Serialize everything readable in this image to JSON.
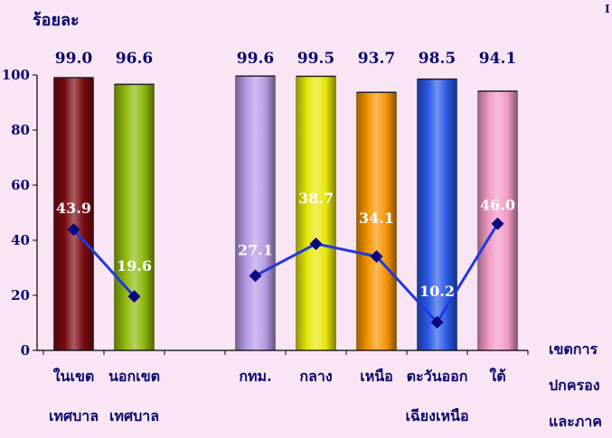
{
  "chart_data": {
    "type": "bar",
    "ylabel": "ร้อยละ",
    "xlabel_lines": [
      "เขตการ",
      "ปกครอง",
      "และภาค"
    ],
    "ylim": [
      0,
      100
    ],
    "yticks": [
      0,
      20,
      40,
      60,
      80,
      100
    ],
    "grid": false,
    "corner_mark": "I",
    "categories": [
      {
        "label_lines": [
          "ในเขต",
          "เทศบาล"
        ],
        "bar": 99.0,
        "line": 43.9,
        "color": "#7a0a12"
      },
      {
        "label_lines": [
          "นอกเขต",
          "เทศบาล"
        ],
        "bar": 96.6,
        "line": 19.6,
        "color": "#8fb80c"
      },
      {
        "label_lines": [],
        "bar": null,
        "line": null,
        "color": null
      },
      {
        "label_lines": [
          "กทม."
        ],
        "bar": 99.6,
        "line": 27.1,
        "color": "#b79ae6"
      },
      {
        "label_lines": [
          "กลาง"
        ],
        "bar": 99.5,
        "line": 38.7,
        "color": "#e6e60a"
      },
      {
        "label_lines": [
          "เหนือ"
        ],
        "bar": 93.7,
        "line": 34.1,
        "color": "#f59300"
      },
      {
        "label_lines": [
          "ตะวันออก",
          "เฉียงเหนือ"
        ],
        "bar": 98.5,
        "line": 10.2,
        "color": "#2a5ae6"
      },
      {
        "label_lines": [
          "ใต้"
        ],
        "bar": 94.1,
        "line": 46.0,
        "color": "#f29ac6"
      }
    ],
    "bar_labels": [
      "99.0",
      "96.6",
      "",
      "99.6",
      "99.5",
      "93.7",
      "98.5",
      "94.1"
    ],
    "line_labels": [
      "43.9",
      "19.6",
      "",
      "27.1",
      "38.7",
      "34.1",
      "10.2",
      "46.0"
    ],
    "line_color": "#1f3adc",
    "marker_color": "#0a0a80"
  }
}
